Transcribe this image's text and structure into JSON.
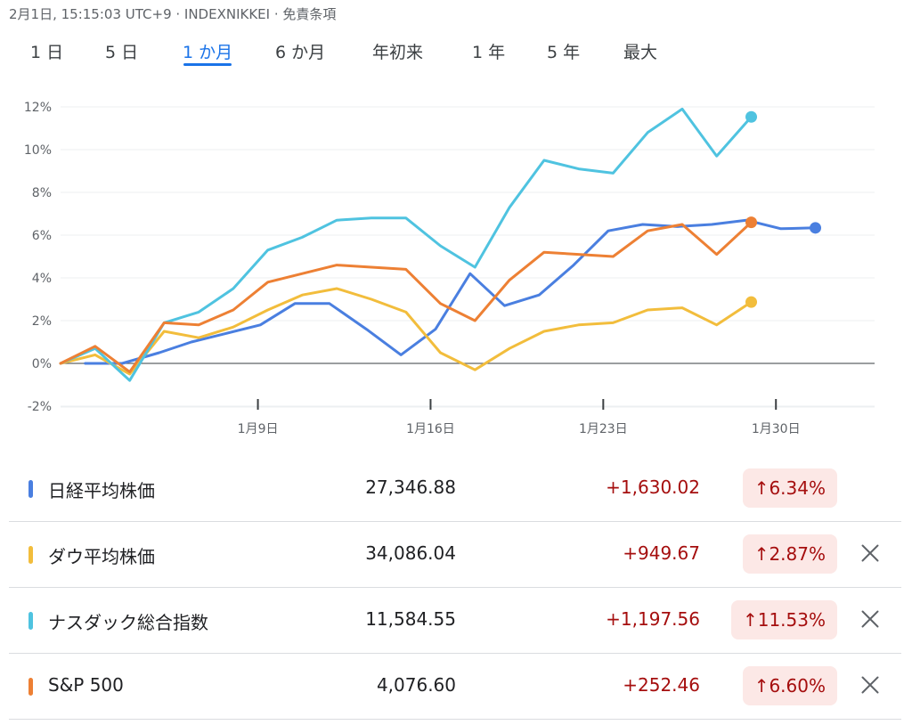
{
  "header": {
    "text": "2月1日, 15:15:03 UTC+9 · INDEXNIKKEI · 免責条項"
  },
  "tabs": [
    {
      "label": "1 日"
    },
    {
      "label": "5 日"
    },
    {
      "label": "1 か月",
      "active": true
    },
    {
      "label": "6 か月"
    },
    {
      "label": "年初来"
    },
    {
      "label": "1 年"
    },
    {
      "label": "5 年"
    },
    {
      "label": "最大"
    }
  ],
  "colors": {
    "accent": "#1a73e8",
    "negative_bg": "#fce8e6",
    "positive_text": "#a50e0e"
  },
  "chart_data": {
    "type": "line",
    "ylim": [
      -2,
      12
    ],
    "yticks": [
      -2,
      0,
      2,
      4,
      6,
      8,
      10,
      12
    ],
    "ytick_labels": [
      "-2%",
      "0%",
      "2%",
      "4%",
      "6%",
      "8%",
      "10%",
      "12%"
    ],
    "x_range": [
      1,
      34
    ],
    "xticks": [
      9,
      16,
      23,
      30
    ],
    "xtick_labels": [
      "1月9日",
      "1月16日",
      "1月23日",
      "1月30日"
    ],
    "grid": true,
    "series": [
      {
        "name": "日経平均株価",
        "color": "#4a7fe0",
        "end_marker": true,
        "points": [
          [
            2,
            0
          ],
          [
            3.5,
            0
          ],
          [
            5,
            0.5
          ],
          [
            6.3,
            1.0
          ],
          [
            7.7,
            1.4
          ],
          [
            9.1,
            1.8
          ],
          [
            10.5,
            2.8
          ],
          [
            11.9,
            2.8
          ],
          [
            13.4,
            1.6
          ],
          [
            14.8,
            0.4
          ],
          [
            16.2,
            1.6
          ],
          [
            17.6,
            4.2
          ],
          [
            19.0,
            2.7
          ],
          [
            20.4,
            3.2
          ],
          [
            21.8,
            4.6
          ],
          [
            23.2,
            6.2
          ],
          [
            24.6,
            6.5
          ],
          [
            26.0,
            6.4
          ],
          [
            27.4,
            6.5
          ],
          [
            28.8,
            6.7
          ],
          [
            30.2,
            6.3
          ],
          [
            31.6,
            6.34
          ]
        ]
      },
      {
        "name": "ダウ平均株価",
        "color": "#f2bd3c",
        "end_marker": true,
        "points": [
          [
            1,
            0
          ],
          [
            2.4,
            0.4
          ],
          [
            3.8,
            -0.5
          ],
          [
            5.2,
            1.5
          ],
          [
            6.6,
            1.2
          ],
          [
            8.0,
            1.7
          ],
          [
            9.4,
            2.5
          ],
          [
            10.8,
            3.2
          ],
          [
            12.2,
            3.5
          ],
          [
            13.6,
            3.0
          ],
          [
            15.0,
            2.4
          ],
          [
            16.4,
            0.5
          ],
          [
            17.8,
            -0.3
          ],
          [
            19.2,
            0.7
          ],
          [
            20.6,
            1.5
          ],
          [
            22.0,
            1.8
          ],
          [
            23.4,
            1.9
          ],
          [
            24.8,
            2.5
          ],
          [
            26.2,
            2.6
          ],
          [
            27.6,
            1.8
          ],
          [
            29.0,
            2.87
          ]
        ]
      },
      {
        "name": "ナスダック総合指数",
        "color": "#4fc3e0",
        "end_marker": true,
        "points": [
          [
            1,
            0
          ],
          [
            2.4,
            0.7
          ],
          [
            3.8,
            -0.8
          ],
          [
            5.2,
            1.9
          ],
          [
            6.6,
            2.4
          ],
          [
            8.0,
            3.5
          ],
          [
            9.4,
            5.3
          ],
          [
            10.8,
            5.9
          ],
          [
            12.2,
            6.7
          ],
          [
            13.6,
            6.8
          ],
          [
            15.0,
            6.8
          ],
          [
            16.4,
            5.5
          ],
          [
            17.8,
            4.5
          ],
          [
            19.2,
            7.3
          ],
          [
            20.6,
            9.5
          ],
          [
            22.0,
            9.1
          ],
          [
            23.4,
            8.9
          ],
          [
            24.8,
            10.8
          ],
          [
            26.2,
            11.9
          ],
          [
            27.6,
            9.7
          ],
          [
            29.0,
            11.53
          ]
        ]
      },
      {
        "name": "S&P 500",
        "color": "#ed8034",
        "end_marker": true,
        "points": [
          [
            1,
            0
          ],
          [
            2.4,
            0.8
          ],
          [
            3.8,
            -0.4
          ],
          [
            5.2,
            1.9
          ],
          [
            6.6,
            1.8
          ],
          [
            8.0,
            2.5
          ],
          [
            9.4,
            3.8
          ],
          [
            10.8,
            4.2
          ],
          [
            12.2,
            4.6
          ],
          [
            13.6,
            4.5
          ],
          [
            15.0,
            4.4
          ],
          [
            16.4,
            2.8
          ],
          [
            17.8,
            2.0
          ],
          [
            19.2,
            3.9
          ],
          [
            20.6,
            5.2
          ],
          [
            22.0,
            5.1
          ],
          [
            23.4,
            5.0
          ],
          [
            24.8,
            6.2
          ],
          [
            26.2,
            6.5
          ],
          [
            27.6,
            5.1
          ],
          [
            29.0,
            6.6
          ]
        ]
      }
    ]
  },
  "rows": [
    {
      "name": "日経平均株価",
      "color": "#4a7fe0",
      "price": "27,346.88",
      "change": "+1,630.02",
      "percent": "↑6.34%",
      "removable": false
    },
    {
      "name": "ダウ平均株価",
      "color": "#f2bd3c",
      "price": "34,086.04",
      "change": "+949.67",
      "percent": "↑2.87%",
      "removable": true
    },
    {
      "name": "ナスダック総合指数",
      "color": "#4fc3e0",
      "price": "11,584.55",
      "change": "+1,197.56",
      "percent": "↑11.53%",
      "removable": true
    },
    {
      "name": "S&P 500",
      "color": "#ed8034",
      "price": "4,076.60",
      "change": "+252.46",
      "percent": "↑6.60%",
      "removable": true
    }
  ]
}
